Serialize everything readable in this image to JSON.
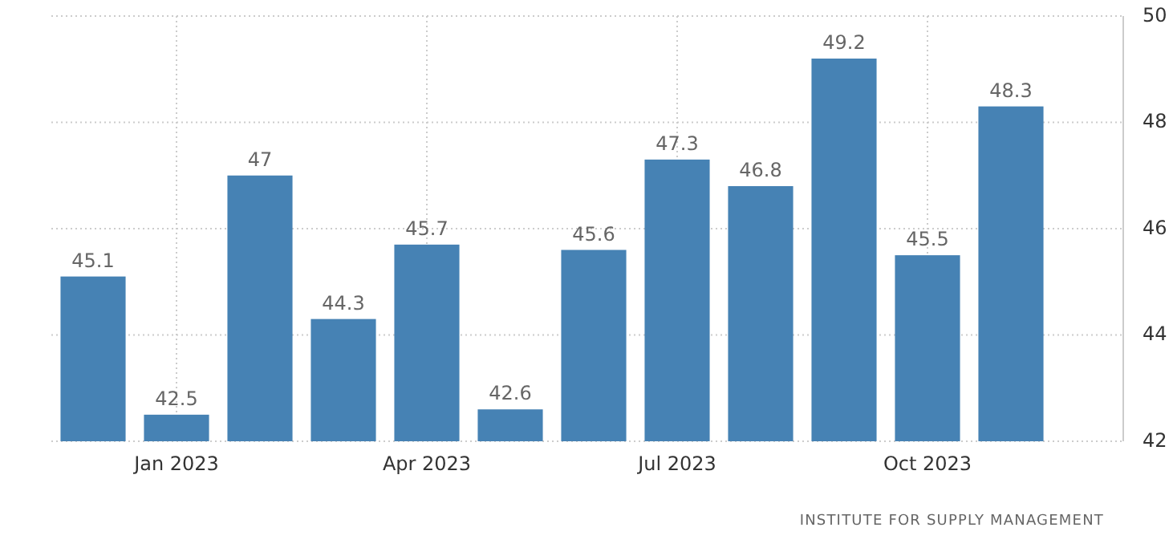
{
  "chart_data": {
    "type": "bar",
    "categories": [
      null,
      "Jan 2023",
      null,
      null,
      "Apr 2023",
      null,
      null,
      "Jul 2023",
      null,
      null,
      "Oct 2023",
      null
    ],
    "values": [
      45.1,
      42.5,
      47,
      44.3,
      45.7,
      42.6,
      45.6,
      47.3,
      46.8,
      49.2,
      45.5,
      48.3
    ],
    "color": "#4682b4",
    "ylim": [
      42,
      50
    ],
    "yticks": [
      42,
      44,
      46,
      48,
      50
    ],
    "grid": true,
    "data_labels": true,
    "annotations": [
      "INSTITUTE FOR SUPPLY MANAGEMENT"
    ]
  }
}
